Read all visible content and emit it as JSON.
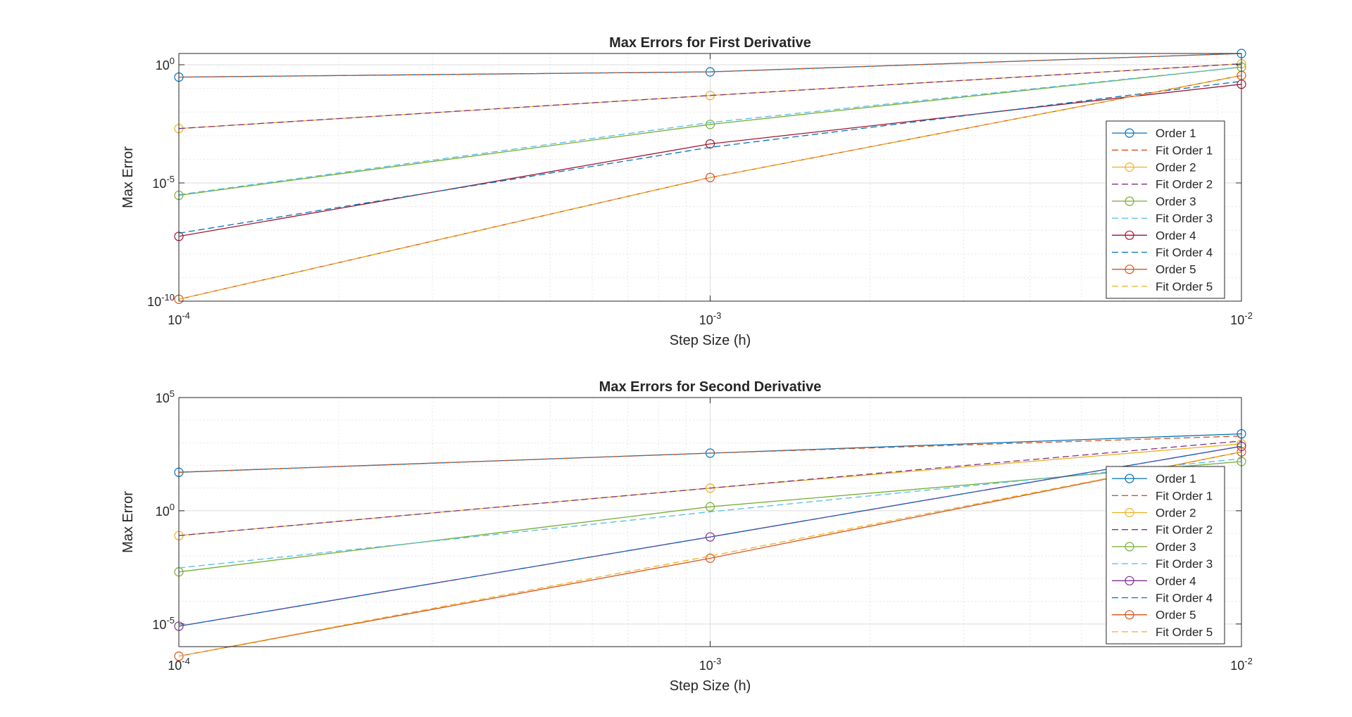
{
  "chart_data": [
    {
      "type": "line",
      "title": "Max Errors for First Derivative",
      "xlabel": "Step Size (h)",
      "ylabel": "Max Error",
      "x_scale": "log",
      "y_scale": "log",
      "xlim": [
        0.0001,
        0.01
      ],
      "ylim": [
        1e-10,
        3.0
      ],
      "x": [
        0.0001,
        0.001,
        0.01
      ],
      "x_ticks": [
        {
          "base": "10",
          "exp": "-4"
        },
        {
          "base": "10",
          "exp": "-3"
        },
        {
          "base": "10",
          "exp": "-2"
        }
      ],
      "y_ticks": [
        {
          "value": 1e-10,
          "base": "10",
          "exp": "-10"
        },
        {
          "value": 1e-05,
          "base": "10",
          "exp": "-5"
        },
        {
          "value": 1,
          "base": "10",
          "exp": "0"
        }
      ],
      "grid": true,
      "legend_position": "bottom-right",
      "series": [
        {
          "name": "Order 1",
          "values": [
            0.3,
            0.5,
            3.0
          ],
          "color": "#0072BD",
          "style": "solid",
          "marker": true
        },
        {
          "name": "Fit Order 1",
          "values": [
            0.3,
            0.5,
            3.0
          ],
          "color": "#D95319",
          "style": "dashed",
          "marker": false
        },
        {
          "name": "Order 2",
          "values": [
            0.002,
            0.05,
            1.1
          ],
          "color": "#EDB120",
          "style": "solid",
          "marker": true
        },
        {
          "name": "Fit Order 2",
          "values": [
            0.002,
            0.05,
            1.1
          ],
          "color": "#7E2F8E",
          "style": "dashed",
          "marker": false
        },
        {
          "name": "Order 3",
          "values": [
            3e-06,
            0.003,
            0.8
          ],
          "color": "#77AC30",
          "style": "solid",
          "marker": true
        },
        {
          "name": "Fit Order 3",
          "values": [
            3.2e-06,
            0.0036,
            0.8
          ],
          "color": "#4DBEEE",
          "style": "dashed",
          "marker": false
        },
        {
          "name": "Order 4",
          "values": [
            5.5e-08,
            0.00045,
            0.15
          ],
          "color": "#A2142F",
          "style": "solid",
          "marker": true
        },
        {
          "name": "Fit Order 4",
          "values": [
            7.5e-08,
            0.00032,
            0.2
          ],
          "color": "#0072BD",
          "style": "dashed",
          "marker": false
        },
        {
          "name": "Order 5",
          "values": [
            1.2e-10,
            1.7e-05,
            0.35
          ],
          "color": "#D95319",
          "style": "solid",
          "marker": true
        },
        {
          "name": "Fit Order 5",
          "values": [
            1.2e-10,
            1.7e-05,
            0.35
          ],
          "color": "#EDB120",
          "style": "dashed",
          "marker": false
        }
      ]
    },
    {
      "type": "line",
      "title": "Max Errors for Second Derivative",
      "xlabel": "Step Size (h)",
      "ylabel": "Max Error",
      "x_scale": "log",
      "y_scale": "log",
      "xlim": [
        0.0001,
        0.01
      ],
      "ylim": [
        1e-06,
        100000
      ],
      "x": [
        0.0001,
        0.001,
        0.01
      ],
      "x_ticks": [
        {
          "base": "10",
          "exp": "-4"
        },
        {
          "base": "10",
          "exp": "-3"
        },
        {
          "base": "10",
          "exp": "-2"
        }
      ],
      "y_ticks": [
        {
          "value": 1e-05,
          "base": "10",
          "exp": "-5"
        },
        {
          "value": 1,
          "base": "10",
          "exp": "0"
        },
        {
          "value": 100000,
          "base": "10",
          "exp": "5"
        }
      ],
      "grid": true,
      "legend_position": "bottom-right",
      "series": [
        {
          "name": "Order 1",
          "values": [
            50,
            350,
            2500
          ],
          "color": "#0072BD",
          "style": "solid",
          "marker": true
        },
        {
          "name": "Fit Order 1",
          "values": [
            50,
            350,
            2000
          ],
          "color": "#D95319",
          "style": "dashed",
          "marker": false
        },
        {
          "name": "Order 2",
          "values": [
            0.08,
            10,
            900
          ],
          "color": "#EDB120",
          "style": "solid",
          "marker": true
        },
        {
          "name": "Fit Order 2",
          "values": [
            0.08,
            10,
            1200
          ],
          "color": "#7E2F8E",
          "style": "dashed",
          "marker": false
        },
        {
          "name": "Order 3",
          "values": [
            0.002,
            1.5,
            150
          ],
          "color": "#77AC30",
          "style": "solid",
          "marker": true
        },
        {
          "name": "Fit Order 3",
          "values": [
            0.003,
            0.9,
            200
          ],
          "color": "#4DBEEE",
          "style": "dashed",
          "marker": false
        },
        {
          "name": "Order 4",
          "values": [
            8e-06,
            0.07,
            700
          ],
          "color": "#7E2F8E",
          "style": "solid",
          "marker": true
        },
        {
          "name": "Fit Order 4",
          "values": [
            8e-06,
            0.07,
            700
          ],
          "color": "#0072BD",
          "style": "dashed",
          "marker": false
        },
        {
          "name": "Order 5",
          "values": [
            3.8e-07,
            0.008,
            400
          ],
          "color": "#D95319",
          "style": "solid",
          "marker": true
        },
        {
          "name": "Fit Order 5",
          "values": [
            3.8e-07,
            0.01,
            400
          ],
          "color": "#EDB120",
          "style": "dashed",
          "marker": false
        }
      ]
    }
  ]
}
